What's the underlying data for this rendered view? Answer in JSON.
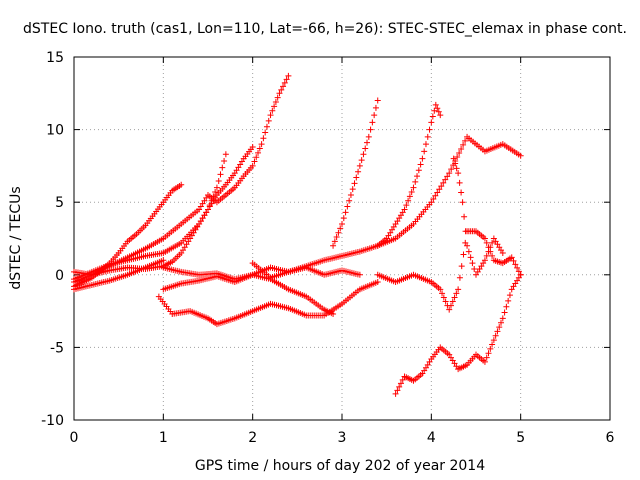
{
  "chart_data": {
    "type": "scatter",
    "title": "dSTEC Iono. truth (cas1, Lon=110, Lat=-66, h=26): STEC-STEC_elemax in phase cont.",
    "xlabel": "GPS time / hours of day 202 of year 2014",
    "ylabel": "dSTEC  / TECUs",
    "xlim": [
      0,
      6
    ],
    "ylim": [
      -10,
      15
    ],
    "x_ticks": [
      "0",
      "1",
      "2",
      "3",
      "4",
      "5",
      "6"
    ],
    "y_ticks": [
      "-10",
      "-5",
      "0",
      "5",
      "10",
      "15"
    ],
    "grid": true,
    "marker": "+",
    "color": "#ff0000",
    "series": [
      {
        "x": [
          0,
          0.1,
          0.2,
          0.3,
          0.4,
          0.5,
          0.6,
          0.7,
          0.8,
          0.9,
          1.0,
          1.1,
          1.2
        ],
        "y": [
          -0.8,
          -0.5,
          -0.2,
          0.3,
          0.8,
          1.5,
          2.3,
          2.8,
          3.4,
          4.2,
          5.0,
          5.8,
          6.2
        ]
      },
      {
        "x": [
          0,
          0.2,
          0.4,
          0.6,
          0.8,
          1.0,
          1.2,
          1.4,
          1.5,
          1.6,
          1.7,
          1.8,
          1.9,
          2.0,
          2.1,
          2.2,
          2.3,
          2.4
        ],
        "y": [
          -0.5,
          0,
          0.6,
          1.2,
          1.8,
          2.5,
          3.5,
          4.5,
          5.5,
          5.0,
          5.5,
          6.0,
          6.8,
          7.5,
          9.0,
          11.0,
          12.5,
          13.7
        ]
      },
      {
        "x": [
          0,
          0.2,
          0.4,
          0.6,
          0.8,
          1.0,
          1.2,
          1.4,
          1.5,
          1.6,
          1.7,
          1.8,
          1.9,
          2.0
        ],
        "y": [
          -0.3,
          0.2,
          0.7,
          1.0,
          1.3,
          1.5,
          2.2,
          3.5,
          4.5,
          5.5,
          6.2,
          7.0,
          8.0,
          8.8
        ]
      },
      {
        "x": [
          0,
          0.2,
          0.4,
          0.6,
          0.8,
          1.0,
          1.1,
          1.2,
          1.3,
          1.4,
          1.5,
          1.6,
          1.7
        ],
        "y": [
          0.2,
          0.0,
          0.3,
          0.5,
          0.4,
          0.6,
          0.9,
          1.5,
          2.5,
          3.5,
          4.5,
          6.0,
          8.3
        ]
      },
      {
        "x": [
          0.0,
          0.2,
          0.4,
          0.6,
          0.8,
          1.0
        ],
        "y": [
          -1.0,
          -0.7,
          -0.4,
          0.0,
          0.5,
          1.0
        ]
      },
      {
        "x": [
          1.0,
          1.2,
          1.4,
          1.6,
          1.8,
          2.0,
          2.2,
          2.4,
          2.6,
          2.8,
          3.0,
          3.2,
          3.4,
          3.6,
          3.8,
          4.0,
          4.2,
          4.4,
          4.6,
          4.8,
          5.0
        ],
        "y": [
          0.5,
          0.2,
          0.0,
          0.1,
          -0.3,
          0.0,
          0.5,
          0.2,
          0.6,
          1.0,
          1.3,
          1.6,
          2.0,
          2.5,
          3.5,
          5.0,
          7.0,
          9.5,
          8.5,
          9.0,
          8.2
        ]
      },
      {
        "x": [
          1.0,
          1.2,
          1.4,
          1.6,
          1.8,
          2.0,
          2.2,
          2.4,
          2.6,
          2.8,
          2.9
        ],
        "y": [
          -1.0,
          -0.6,
          -0.4,
          -0.1,
          -0.5,
          0.0,
          -0.3,
          -1.0,
          -1.5,
          -2.4,
          -2.7
        ]
      },
      {
        "x": [
          0.95,
          1.1,
          1.3,
          1.5,
          1.6,
          1.8,
          2.0,
          2.2,
          2.4,
          2.6,
          2.8,
          3.0,
          3.2,
          3.4
        ],
        "y": [
          -1.5,
          -2.7,
          -2.5,
          -3.0,
          -3.4,
          -3.0,
          -2.5,
          -2.0,
          -2.3,
          -2.8,
          -2.8,
          -2.0,
          -1.0,
          -0.5
        ]
      },
      {
        "x": [
          2.9,
          3.0,
          3.1,
          3.2,
          3.3,
          3.4
        ],
        "y": [
          2.0,
          3.5,
          5.5,
          7.5,
          9.5,
          12.0
        ]
      },
      {
        "x": [
          3.4,
          3.5,
          3.6,
          3.7,
          3.8,
          3.9,
          4.0,
          4.05,
          4.1
        ],
        "y": [
          2.0,
          2.5,
          3.5,
          4.5,
          6.0,
          8.0,
          10.5,
          11.7,
          11.0
        ]
      },
      {
        "x": [
          3.6,
          3.7,
          3.8,
          3.9,
          4.0,
          4.1,
          4.2,
          4.3,
          4.4,
          4.5,
          4.6,
          4.7,
          4.8,
          4.9,
          5.0
        ],
        "y": [
          -8.2,
          -7.0,
          -7.3,
          -6.8,
          -5.8,
          -5.0,
          -5.5,
          -6.5,
          -6.2,
          -5.5,
          -6.0,
          -4.5,
          -3.0,
          -1.0,
          0.0
        ]
      },
      {
        "x": [
          3.4,
          3.6,
          3.8,
          4.0,
          4.1,
          4.2,
          4.3,
          4.4,
          4.5,
          4.6,
          4.7,
          4.8,
          4.9,
          5.0
        ],
        "y": [
          0.0,
          -0.5,
          0.0,
          -0.5,
          -1.0,
          -2.4,
          -1.0,
          3.0,
          3.0,
          2.5,
          1.0,
          0.8,
          1.2,
          0.0
        ]
      },
      {
        "x": [
          4.25,
          4.3,
          4.35,
          4.4,
          4.5,
          4.6,
          4.7,
          4.8
        ],
        "y": [
          8.0,
          7.0,
          5.0,
          2.0,
          0.0,
          1.0,
          2.5,
          1.5
        ]
      },
      {
        "x": [
          2.0,
          2.2,
          2.4,
          2.6,
          2.8,
          3.0,
          3.2
        ],
        "y": [
          0.8,
          -0.2,
          0.2,
          0.5,
          0.0,
          0.3,
          0.0
        ]
      }
    ]
  }
}
